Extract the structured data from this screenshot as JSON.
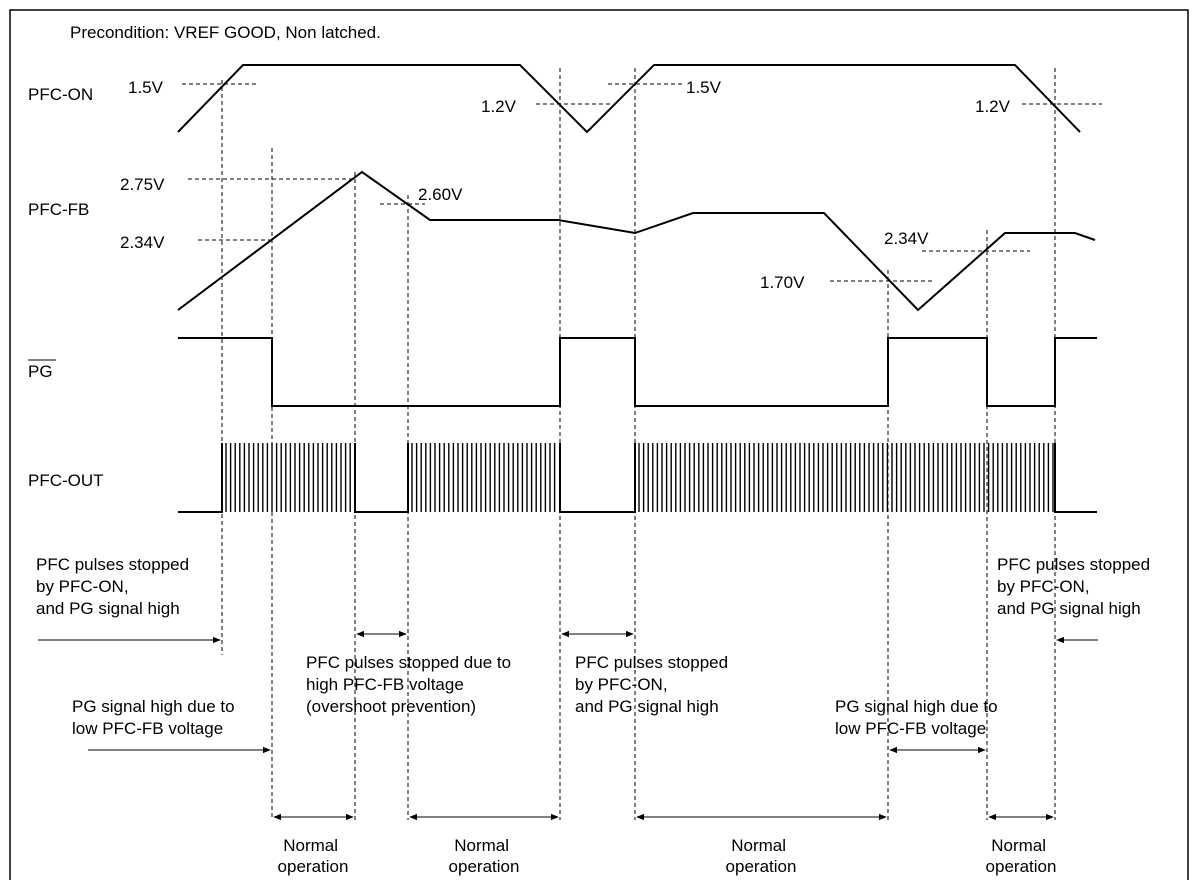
{
  "precondition": "Precondition:  VREF GOOD, Non latched.",
  "signals": {
    "pfc_on": "PFC-ON",
    "pfc_fb": "PFC-FB",
    "pg": "PG",
    "pfc_out": "PFC-OUT"
  },
  "thresholds": {
    "on_1_5_left": "1.5V",
    "on_1_2_mid": "1.2V",
    "on_1_5_mid": "1.5V",
    "on_1_2_right": "1.2V",
    "fb_2_75": "2.75V",
    "fb_2_60": "2.60V",
    "fb_2_34_left": "2.34V",
    "fb_2_34_right": "2.34V",
    "fb_1_70": "1.70V"
  },
  "notes": {
    "stop_left": [
      "PFC pulses stopped",
      "by PFC-ON,",
      "and PG signal high"
    ],
    "pg_low_left": [
      "PG signal high due to",
      "low PFC-FB voltage"
    ],
    "overshoot": [
      "PFC pulses stopped due to",
      "high PFC-FB voltage",
      "(overshoot prevention)"
    ],
    "stop_mid": [
      "PFC pulses stopped",
      "by PFC-ON,",
      "and PG signal high"
    ],
    "pg_low_right": [
      "PG signal high due to",
      "low PFC-FB voltage"
    ],
    "stop_right": [
      "PFC pulses stopped",
      "by PFC-ON,",
      "and PG signal high"
    ]
  },
  "normal_operation": [
    [
      "Normal",
      "operation"
    ],
    [
      "Normal",
      "operation"
    ],
    [
      "Normal",
      "operation"
    ],
    [
      "Normal",
      "operation"
    ]
  ]
}
